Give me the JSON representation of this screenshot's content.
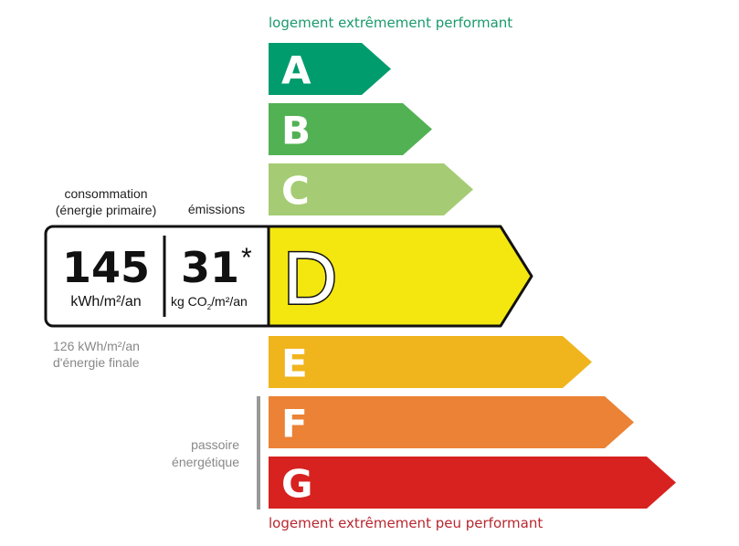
{
  "captions": {
    "top": "logement extrêmement performant",
    "bottom": "logement extrêmement peu performant"
  },
  "labels": {
    "consumption": "consommation\n(énergie primaire)",
    "emissions": "émissions",
    "passoire": "passoire\nénergétique"
  },
  "consumption": {
    "value": "145",
    "unit": "kWh/m²/an",
    "final": "126 kWh/m²/an\nd'énergie finale"
  },
  "emissions": {
    "value": "31",
    "asterisk": "*",
    "unit_prefix": "kg CO",
    "unit_sub": "2",
    "unit_suffix": "/m²/an"
  },
  "current_class": "D",
  "classes": [
    {
      "letter": "A",
      "color": "#009c6d"
    },
    {
      "letter": "B",
      "color": "#52b153"
    },
    {
      "letter": "C",
      "color": "#a5cc74"
    },
    {
      "letter": "D",
      "color": "#f4e70f"
    },
    {
      "letter": "E",
      "color": "#f0b41c"
    },
    {
      "letter": "F",
      "color": "#eb8235"
    },
    {
      "letter": "G",
      "color": "#d7221f"
    }
  ]
}
